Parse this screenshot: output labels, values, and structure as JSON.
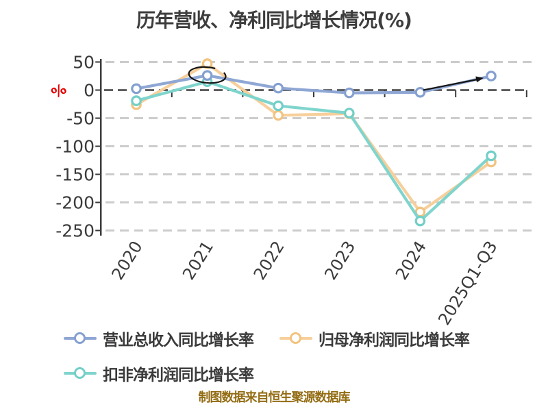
{
  "title": "历年营收、净利同比增长情况(%)",
  "caption": "制图数据来自恒生聚源数据库",
  "colors": {
    "axis": "#3a3a3a",
    "grid_light": "#cccccc",
    "grid_zero": "#3f3f3f",
    "tick_label": "#3a3a3a",
    "title_text": "#3d3d3d",
    "unit_label": "#e60000",
    "annotation": "#151515",
    "caption_text": "#936c13"
  },
  "chart_data": {
    "type": "line",
    "title": "历年营收、净利同比增长情况(%)",
    "xlabel": "",
    "ylabel": "%",
    "categories": [
      "2020",
      "2021",
      "2022",
      "2023",
      "2024",
      "2025Q1-Q3"
    ],
    "series": [
      {
        "name": "营业总收入同比增长率",
        "color": "#8fa7d4",
        "ring": "#84a0d0",
        "values": [
          2.5,
          26,
          3.5,
          -5,
          -4,
          25
        ]
      },
      {
        "name": "归母净利润同比增长率",
        "color": "#f7cf9b",
        "ring": "#f2c37f",
        "values": [
          -26,
          47,
          -45,
          -42,
          -217,
          -128
        ]
      },
      {
        "name": "扣非净利润同比增长率",
        "color": "#7fd5cd",
        "ring": "#72cfc7",
        "values": [
          -19,
          15,
          -28,
          -41,
          -233,
          -117
        ]
      }
    ],
    "y_ticks": [
      50,
      0,
      -50,
      -100,
      -150,
      -200,
      -250
    ],
    "ylim": [
      -265,
      60
    ],
    "grid": "horizontal dashed",
    "marker": "open circle, white fill",
    "legend_position": "bottom-left, two rows",
    "annotations": [
      "hand-drawn black circle around 2021 revenue-growth point",
      "hand-drawn black arrow pointing to 2025Q1-Q3 revenue-growth point"
    ]
  }
}
